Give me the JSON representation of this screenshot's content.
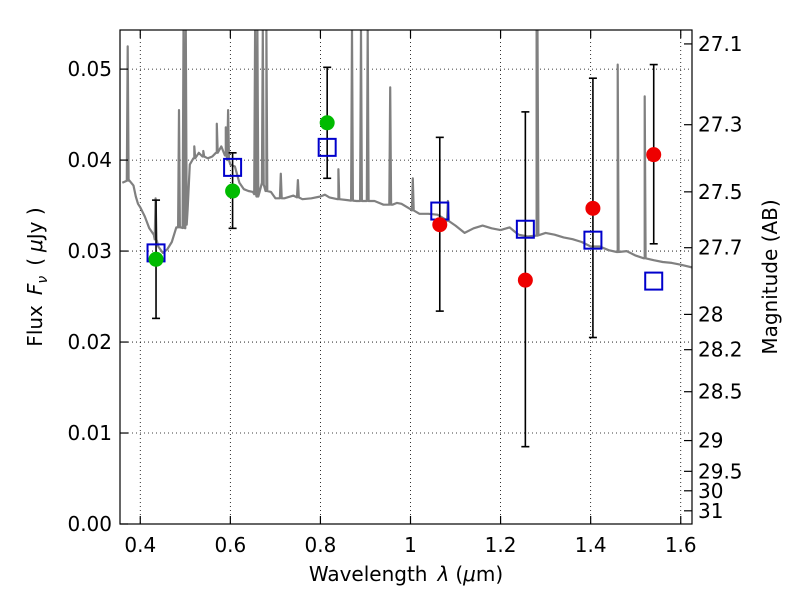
{
  "chart_data": {
    "type": "scatter",
    "title": "",
    "xlabel_text": "Wavelength",
    "xlabel_symbol": "λ",
    "xlabel_unit_prefix": "(",
    "xlabel_unit_mu": "μ",
    "xlabel_unit_rest": "m)",
    "ylabel_text": "Flux",
    "ylabel_symbol": "F",
    "ylabel_symbol_sub": "ν",
    "ylabel_unit_prefix": "(",
    "ylabel_unit_mu": "μ",
    "ylabel_unit_rest": "Jy )",
    "y2label": "Magnitude (AB)",
    "xlim": [
      0.355,
      1.625
    ],
    "ylim": [
      0.0,
      0.0543
    ],
    "grid": true,
    "x_ticks": [
      0.4,
      0.6,
      0.8,
      1.0,
      1.2,
      1.4,
      1.6
    ],
    "x_tick_labels": [
      "0.4",
      "0.6",
      "0.8",
      "1",
      "1.2",
      "1.4",
      "1.6"
    ],
    "y_ticks": [
      0.0,
      0.01,
      0.02,
      0.03,
      0.04,
      0.05
    ],
    "y_tick_labels": [
      "0.00",
      "0.01",
      "0.02",
      "0.03",
      "0.04",
      "0.05"
    ],
    "y2_ticks": [
      {
        "label": "27.1",
        "flux": 0.05277
      },
      {
        "label": "27.3",
        "flux": 0.04389
      },
      {
        "label": "27.5",
        "flux": 0.03651
      },
      {
        "label": "27.7",
        "flux": 0.03037
      },
      {
        "label": "28",
        "flux": 0.02304
      },
      {
        "label": "28.2",
        "flux": 0.01916
      },
      {
        "label": "28.5",
        "flux": 0.01454
      },
      {
        "label": "29",
        "flux": 0.00917
      },
      {
        "label": "29.5",
        "flux": 0.00579
      },
      {
        "label": "30",
        "flux": 0.00365
      },
      {
        "label": "31",
        "flux": 0.00145
      }
    ],
    "colors": {
      "model_line": "#808080",
      "model_points": "#0000cc",
      "green_points": "#00bb00",
      "red_points": "#ee0000",
      "errorbar": "#000000"
    },
    "series": [
      {
        "kind": "spectrum",
        "x": [
          0.36,
          0.375,
          0.385,
          0.39,
          0.395,
          0.4,
          0.41,
          0.42,
          0.43,
          0.44,
          0.45,
          0.46,
          0.47,
          0.48,
          0.49,
          0.5,
          0.505,
          0.51,
          0.52,
          0.53,
          0.54,
          0.55,
          0.56,
          0.57,
          0.58,
          0.59,
          0.6,
          0.61,
          0.62,
          0.63,
          0.64,
          0.65,
          0.66,
          0.665,
          0.67,
          0.68,
          0.69,
          0.7,
          0.72,
          0.74,
          0.76,
          0.78,
          0.8,
          0.81,
          0.82,
          0.84,
          0.86,
          0.88,
          0.9,
          0.92,
          0.94,
          0.96,
          0.97,
          0.98,
          1.0,
          1.02,
          1.04,
          1.06,
          1.08,
          1.1,
          1.12,
          1.14,
          1.16,
          1.18,
          1.2,
          1.22,
          1.23,
          1.24,
          1.26,
          1.28,
          1.3,
          1.32,
          1.34,
          1.36,
          1.38,
          1.4,
          1.42,
          1.44,
          1.46,
          1.48,
          1.5,
          1.52,
          1.54,
          1.56,
          1.58,
          1.6,
          1.625
        ],
        "y": [
          0.0375,
          0.0378,
          0.0372,
          0.036,
          0.0352,
          0.0348,
          0.0338,
          0.0325,
          0.0318,
          0.0305,
          0.0298,
          0.0302,
          0.031,
          0.0326,
          0.0326,
          0.0325,
          0.0345,
          0.0395,
          0.0402,
          0.0408,
          0.0404,
          0.0402,
          0.0404,
          0.0408,
          0.0415,
          0.0405,
          0.0395,
          0.0393,
          0.0375,
          0.0368,
          0.0366,
          0.0365,
          0.036,
          0.0365,
          0.0375,
          0.0366,
          0.0365,
          0.0358,
          0.0358,
          0.0361,
          0.0357,
          0.0358,
          0.036,
          0.0362,
          0.0359,
          0.0357,
          0.0356,
          0.0355,
          0.0355,
          0.0355,
          0.0351,
          0.0351,
          0.0353,
          0.0352,
          0.0346,
          0.0341,
          0.0341,
          0.034,
          0.0334,
          0.0328,
          0.032,
          0.0325,
          0.0328,
          0.0325,
          0.0323,
          0.0326,
          0.0322,
          0.0318,
          0.0316,
          0.0317,
          0.032,
          0.0318,
          0.0315,
          0.0313,
          0.031,
          0.0305,
          0.0305,
          0.0301,
          0.0299,
          0.03,
          0.0295,
          0.0292,
          0.029,
          0.0288,
          0.0287,
          0.0285,
          0.0282
        ]
      },
      {
        "kind": "spectrum_lines",
        "lines": [
          {
            "x": 0.372,
            "peak": 0.0525
          },
          {
            "x": 0.434,
            "peak": 0.0358
          },
          {
            "x": 0.486,
            "peak": 0.0455
          },
          {
            "x": 0.496,
            "peak": 0.0543
          },
          {
            "x": 0.501,
            "peak": 0.0543
          },
          {
            "x": 0.52,
            "peak": 0.0415
          },
          {
            "x": 0.54,
            "peak": 0.041
          },
          {
            "x": 0.57,
            "peak": 0.044
          },
          {
            "x": 0.59,
            "peak": 0.0436
          },
          {
            "x": 0.595,
            "peak": 0.0455
          },
          {
            "x": 0.655,
            "peak": 0.0543
          },
          {
            "x": 0.66,
            "peak": 0.0543
          },
          {
            "x": 0.672,
            "peak": 0.0543
          },
          {
            "x": 0.68,
            "peak": 0.0543
          },
          {
            "x": 0.712,
            "peak": 0.0385
          },
          {
            "x": 0.75,
            "peak": 0.0378
          },
          {
            "x": 0.84,
            "peak": 0.039
          },
          {
            "x": 0.87,
            "peak": 0.0543
          },
          {
            "x": 0.89,
            "peak": 0.0543
          },
          {
            "x": 0.905,
            "peak": 0.0543
          },
          {
            "x": 0.955,
            "peak": 0.048
          },
          {
            "x": 1.005,
            "peak": 0.038
          },
          {
            "x": 1.083,
            "peak": 0.0355
          },
          {
            "x": 1.28,
            "peak": 0.0543
          },
          {
            "x": 1.282,
            "peak": 0.0543
          },
          {
            "x": 1.52,
            "peak": 0.047
          },
          {
            "x": 1.46,
            "peak": 0.0505
          }
        ]
      },
      {
        "kind": "model_points",
        "marker": "square",
        "x": [
          0.435,
          0.605,
          0.815,
          1.065,
          1.255,
          1.405,
          1.54
        ],
        "y": [
          0.0298,
          0.0392,
          0.0414,
          0.0344,
          0.0324,
          0.0312,
          0.0267
        ]
      },
      {
        "kind": "green_points",
        "marker": "circle",
        "x": [
          0.435,
          0.605,
          0.815
        ],
        "y": [
          0.0291,
          0.0366,
          0.0441
        ],
        "yerr_low": [
          0.0226,
          0.0325,
          0.038
        ],
        "yerr_high": [
          0.0356,
          0.0408,
          0.0502
        ]
      },
      {
        "kind": "red_points",
        "marker": "circle",
        "x": [
          1.065,
          1.255,
          1.405,
          1.54
        ],
        "y": [
          0.0329,
          0.0268,
          0.0347,
          0.0406
        ],
        "yerr_low": [
          0.0234,
          0.0085,
          0.0205,
          0.0308
        ],
        "yerr_high": [
          0.0425,
          0.0453,
          0.049,
          0.0505
        ]
      }
    ]
  }
}
